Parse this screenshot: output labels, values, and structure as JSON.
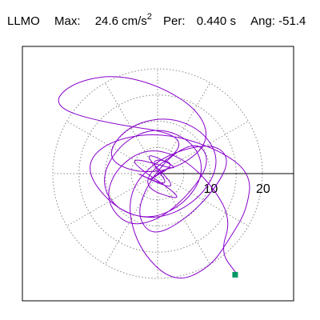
{
  "header": {
    "station": "LLMO",
    "max_label": "Max:",
    "max_value": "24.6 cm/s",
    "max_sup": "2",
    "per_label": "Per:",
    "per_value": "0.440 s",
    "ang_label": "Ang:",
    "ang_value": "-51.4"
  },
  "chart_data": {
    "type": "line",
    "title": "LLMO Max: 24.6 cm/s2 Per: 0.440 s Ang: -51.4",
    "xlabel": "",
    "ylabel": "",
    "grid": true,
    "grid_style": "polar dotted rings every 5 units, spokes every 30 degrees",
    "radial_ticks": [
      "10",
      "20"
    ],
    "xlim": [
      -25,
      25
    ],
    "ylim": [
      -25,
      25
    ],
    "colors": {
      "trace": "#8800cc",
      "marker": "#009966",
      "grid": "#888888"
    },
    "series": [
      {
        "values_note": "particle-motion orbit trace (x,y in cm/s2), sampled",
        "x": [
          0,
          2,
          -3,
          4,
          -2,
          3,
          -6,
          5,
          -4,
          6,
          -8,
          7,
          -5,
          8,
          -12,
          -20,
          -17,
          -9,
          0,
          8,
          10,
          4,
          -4,
          -10,
          -6,
          2,
          9,
          12,
          8,
          0,
          -8,
          -11,
          -7,
          0,
          7,
          9,
          5,
          -2,
          -9,
          -14,
          -10,
          0,
          11,
          18,
          17,
          14,
          10,
          3,
          -4,
          -6,
          0,
          10,
          14,
          11,
          5,
          -1,
          -4,
          -2,
          3,
          8,
          10,
          6,
          0,
          -6,
          -10,
          -8,
          -2,
          5,
          11,
          14,
          12,
          15
        ],
        "y": [
          0,
          1,
          -2,
          2,
          3,
          -3,
          1,
          -4,
          5,
          0,
          4,
          -6,
          -2,
          7,
          10,
          13,
          17,
          19,
          17,
          12,
          6,
          1,
          0,
          3,
          9,
          11,
          8,
          2,
          -5,
          -9,
          -7,
          -1,
          6,
          9,
          6,
          0,
          -6,
          -9,
          -6,
          1,
          6,
          8,
          5,
          0,
          -7,
          -12,
          -18,
          -21,
          -14,
          -4,
          3,
          6,
          3,
          -3,
          -9,
          -12,
          -8,
          -2,
          4,
          6,
          2,
          -4,
          -9,
          -10,
          -5,
          1,
          5,
          3,
          -3,
          -9,
          -15,
          -19
        ]
      }
    ],
    "end_marker": {
      "x": 14.8,
      "y": -19.3
    }
  }
}
